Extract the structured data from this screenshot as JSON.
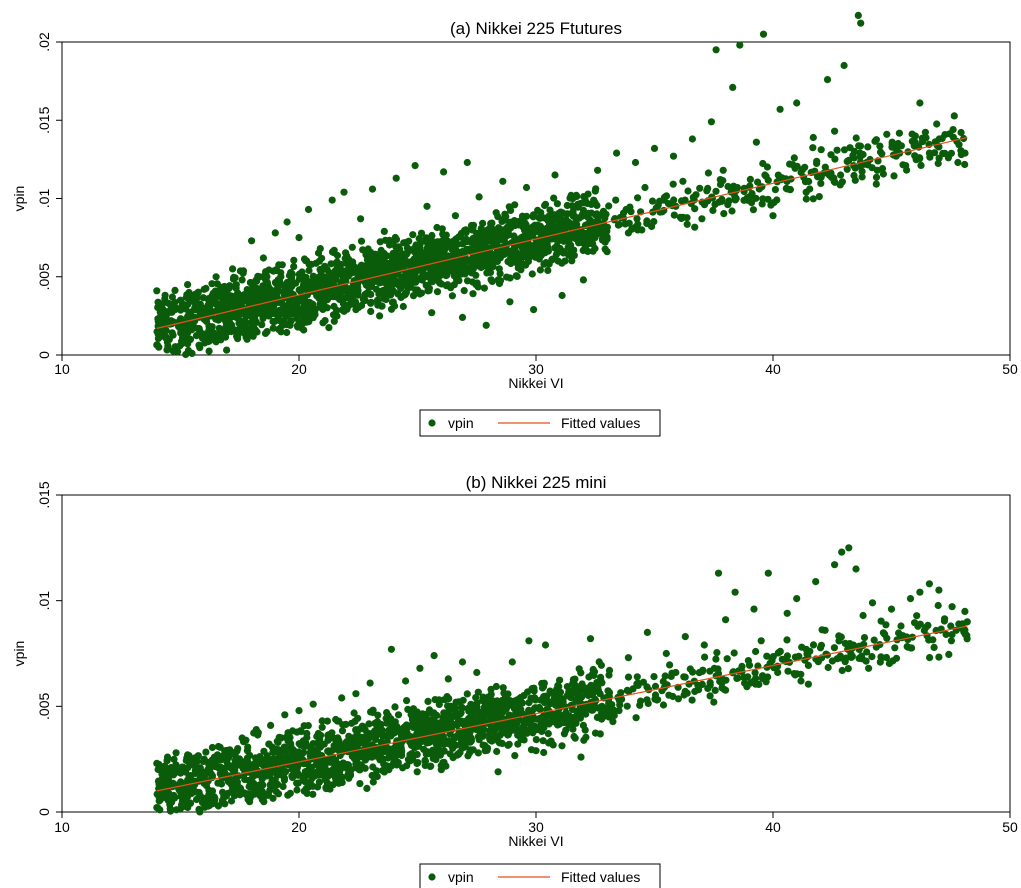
{
  "chart_data": [
    {
      "type": "scatter",
      "title": "(a) Nikkei 225 Ftutures",
      "xlabel": "Nikkei VI",
      "ylabel": "vpin",
      "xlim": [
        10,
        50
      ],
      "ylim": [
        0,
        0.02
      ],
      "xticks": [
        10,
        20,
        30,
        40,
        50
      ],
      "xtick_labels": [
        "10",
        "20",
        "30",
        "40",
        "50"
      ],
      "yticks": [
        0,
        0.005,
        0.01,
        0.015,
        0.02
      ],
      "ytick_labels": [
        "0",
        ".005",
        ".01",
        ".015",
        ".02"
      ],
      "grid": false,
      "legend_position": "bottom-center",
      "legend": [
        "vpin",
        "Fitted values"
      ],
      "series": [
        {
          "name": "vpin",
          "kind": "scatter",
          "color": "#0a5c0a",
          "points": [
            [
              14,
              0.0041
            ],
            [
              14.2,
              0.003
            ],
            [
              14.5,
              0.0033
            ],
            [
              15,
              0.0035
            ],
            [
              15.3,
              0.0045
            ],
            [
              15.6,
              0.003
            ],
            [
              16,
              0.0042
            ],
            [
              16.3,
              0.0025
            ],
            [
              16.5,
              0.005
            ],
            [
              16.8,
              0.0036
            ],
            [
              17,
              0.002
            ],
            [
              17.2,
              0.0055
            ],
            [
              17.4,
              0.0012
            ],
            [
              17.6,
              0.0048
            ],
            [
              17.8,
              0.0028
            ],
            [
              18,
              0.0073
            ],
            [
              18.2,
              0.0021
            ],
            [
              18.5,
              0.0062
            ],
            [
              18.7,
              0.0044
            ],
            [
              19,
              0.0078
            ],
            [
              19.2,
              0.0017
            ],
            [
              19.5,
              0.0085
            ],
            [
              19.7,
              0.0052
            ],
            [
              20,
              0.0075
            ],
            [
              20.2,
              0.0016
            ],
            [
              20.4,
              0.0093
            ],
            [
              20.6,
              0.0047
            ],
            [
              20.9,
              0.0068
            ],
            [
              21.1,
              0.0022
            ],
            [
              21.4,
              0.0099
            ],
            [
              21.6,
              0.0037
            ],
            [
              21.9,
              0.0104
            ],
            [
              22.1,
              0.0061
            ],
            [
              22.4,
              0.0029
            ],
            [
              22.6,
              0.0087
            ],
            [
              22.9,
              0.0053
            ],
            [
              23.1,
              0.0106
            ],
            [
              23.4,
              0.0025
            ],
            [
              23.6,
              0.0079
            ],
            [
              23.9,
              0.0046
            ],
            [
              24.1,
              0.0113
            ],
            [
              24.4,
              0.0031
            ],
            [
              24.6,
              0.0066
            ],
            [
              24.9,
              0.0121
            ],
            [
              25.1,
              0.0039
            ],
            [
              25.4,
              0.0095
            ],
            [
              25.6,
              0.0027
            ],
            [
              25.9,
              0.0071
            ],
            [
              26.1,
              0.0117
            ],
            [
              26.4,
              0.0043
            ],
            [
              26.6,
              0.0089
            ],
            [
              26.9,
              0.0024
            ],
            [
              27.1,
              0.0123
            ],
            [
              27.4,
              0.0058
            ],
            [
              27.6,
              0.0101
            ],
            [
              27.9,
              0.0019
            ],
            [
              28.1,
              0.0082
            ],
            [
              28.4,
              0.0048
            ],
            [
              28.6,
              0.0111
            ],
            [
              28.9,
              0.0034
            ],
            [
              29.1,
              0.0096
            ],
            [
              29.4,
              0.0062
            ],
            [
              29.6,
              0.0107
            ],
            [
              29.9,
              0.0029
            ],
            [
              30.2,
              0.0091
            ],
            [
              30.5,
              0.0054
            ],
            [
              30.8,
              0.0115
            ],
            [
              31.1,
              0.0038
            ],
            [
              31.4,
              0.0076
            ],
            [
              31.7,
              0.0102
            ],
            [
              32,
              0.0048
            ],
            [
              32.3,
              0.0086
            ],
            [
              32.6,
              0.0118
            ],
            [
              33,
              0.0066
            ],
            [
              33.4,
              0.0129
            ],
            [
              33.8,
              0.0093
            ],
            [
              34.2,
              0.0123
            ],
            [
              34.6,
              0.0107
            ],
            [
              35,
              0.0132
            ],
            [
              35.4,
              0.0099
            ],
            [
              35.8,
              0.0127
            ],
            [
              36.2,
              0.0111
            ],
            [
              36.6,
              0.0138
            ],
            [
              37,
              0.0087
            ],
            [
              37.4,
              0.0149
            ],
            [
              37.6,
              0.0195
            ],
            [
              37.9,
              0.0118
            ],
            [
              38.3,
              0.0171
            ],
            [
              38.6,
              0.0198
            ],
            [
              39,
              0.0101
            ],
            [
              39.3,
              0.0136
            ],
            [
              39.6,
              0.0205
            ],
            [
              40,
              0.0089
            ],
            [
              40.3,
              0.0157
            ],
            [
              40.7,
              0.0122
            ],
            [
              41,
              0.0161
            ],
            [
              41.4,
              0.0104
            ],
            [
              41.7,
              0.0139
            ],
            [
              42,
              0.0115
            ],
            [
              42.3,
              0.0176
            ],
            [
              42.6,
              0.0143
            ],
            [
              43,
              0.0185
            ],
            [
              43.4,
              0.0121
            ],
            [
              43.6,
              0.0217
            ],
            [
              43.7,
              0.0212
            ],
            [
              44,
              0.0133
            ],
            [
              44.4,
              0.0118
            ],
            [
              44.8,
              0.0141
            ],
            [
              45.2,
              0.0127
            ],
            [
              45.6,
              0.0121
            ],
            [
              46,
              0.0136
            ],
            [
              46.2,
              0.0161
            ],
            [
              46.6,
              0.0129
            ],
            [
              47,
              0.0133
            ],
            [
              47.4,
              0.0126
            ],
            [
              47.8,
              0.0123
            ],
            [
              48.1,
              0.0129
            ]
          ]
        },
        {
          "name": "Fitted values",
          "kind": "line",
          "color": "#e8501a",
          "points": [
            [
              14,
              0.0017
            ],
            [
              48.2,
              0.0139
            ]
          ]
        }
      ]
    },
    {
      "type": "scatter",
      "title": "(b) Nikkei 225 mini",
      "xlabel": "Nikkei VI",
      "ylabel": "vpin",
      "xlim": [
        10,
        50
      ],
      "ylim": [
        0,
        0.015
      ],
      "xticks": [
        10,
        20,
        30,
        40,
        50
      ],
      "xtick_labels": [
        "10",
        "20",
        "30",
        "40",
        "50"
      ],
      "yticks": [
        0,
        0.005,
        0.01,
        0.015
      ],
      "ytick_labels": [
        "0",
        ".005",
        ".01",
        ".015"
      ],
      "grid": false,
      "legend_position": "bottom-center",
      "legend": [
        "vpin",
        "Fitted values"
      ],
      "series": [
        {
          "name": "vpin",
          "kind": "scatter",
          "color": "#0a5c0a",
          "points": [
            [
              14,
              0.0023
            ],
            [
              14.3,
              0.0016
            ],
            [
              14.6,
              0.0021
            ],
            [
              15,
              0.0019
            ],
            [
              15.3,
              0.0027
            ],
            [
              15.6,
              0.0014
            ],
            [
              16,
              0.0025
            ],
            [
              16.3,
              0.0018
            ],
            [
              16.6,
              0.0031
            ],
            [
              17,
              0.0015
            ],
            [
              17.3,
              0.0027
            ],
            [
              17.6,
              0.0035
            ],
            [
              17.9,
              0.0012
            ],
            [
              18.2,
              0.0039
            ],
            [
              18.5,
              0.0022
            ],
            [
              18.8,
              0.0041
            ],
            [
              19.1,
              0.0013
            ],
            [
              19.4,
              0.0046
            ],
            [
              19.7,
              0.0029
            ],
            [
              20,
              0.0048
            ],
            [
              20.3,
              0.0011
            ],
            [
              20.6,
              0.0051
            ],
            [
              20.9,
              0.0024
            ],
            [
              21.2,
              0.0043
            ],
            [
              21.5,
              0.0017
            ],
            [
              21.8,
              0.0054
            ],
            [
              22.1,
              0.0033
            ],
            [
              22.4,
              0.0056
            ],
            [
              22.7,
              0.0021
            ],
            [
              23,
              0.0061
            ],
            [
              23.3,
              0.0038
            ],
            [
              23.6,
              0.0019
            ],
            [
              23.9,
              0.0077
            ],
            [
              24.2,
              0.0046
            ],
            [
              24.5,
              0.0062
            ],
            [
              24.8,
              0.0025
            ],
            [
              25.1,
              0.0068
            ],
            [
              25.4,
              0.0041
            ],
            [
              25.7,
              0.0074
            ],
            [
              26,
              0.0022
            ],
            [
              26.3,
              0.0063
            ],
            [
              26.6,
              0.0049
            ],
            [
              26.9,
              0.0071
            ],
            [
              27.2,
              0.0028
            ],
            [
              27.5,
              0.0066
            ],
            [
              27.8,
              0.0039
            ],
            [
              28.1,
              0.0058
            ],
            [
              28.4,
              0.0019
            ],
            [
              28.7,
              0.0054
            ],
            [
              29,
              0.0071
            ],
            [
              29.3,
              0.0036
            ],
            [
              29.7,
              0.0081
            ],
            [
              30,
              0.0029
            ],
            [
              30.4,
              0.0079
            ],
            [
              30.8,
              0.0052
            ],
            [
              31.2,
              0.0037
            ],
            [
              31.6,
              0.0058
            ],
            [
              31.9,
              0.0026
            ],
            [
              32.3,
              0.0082
            ],
            [
              32.7,
              0.0056
            ],
            [
              33.1,
              0.0067
            ],
            [
              33.5,
              0.0048
            ],
            [
              33.9,
              0.0073
            ],
            [
              34.3,
              0.0061
            ],
            [
              34.7,
              0.0085
            ],
            [
              35.1,
              0.0053
            ],
            [
              35.5,
              0.0075
            ],
            [
              35.9,
              0.0066
            ],
            [
              36.3,
              0.0083
            ],
            [
              36.7,
              0.0057
            ],
            [
              37.1,
              0.0079
            ],
            [
              37.5,
              0.0052
            ],
            [
              37.7,
              0.0113
            ],
            [
              38,
              0.0091
            ],
            [
              38.4,
              0.0104
            ],
            [
              38.8,
              0.0061
            ],
            [
              39.2,
              0.0096
            ],
            [
              39.5,
              0.0081
            ],
            [
              39.8,
              0.0113
            ],
            [
              40.2,
              0.0066
            ],
            [
              40.6,
              0.0094
            ],
            [
              41,
              0.0101
            ],
            [
              41.4,
              0.0077
            ],
            [
              41.8,
              0.0109
            ],
            [
              42.2,
              0.0086
            ],
            [
              42.6,
              0.0117
            ],
            [
              42.9,
              0.0123
            ],
            [
              43.2,
              0.0125
            ],
            [
              43.5,
              0.0115
            ],
            [
              43.8,
              0.0093
            ],
            [
              44.2,
              0.0099
            ],
            [
              44.6,
              0.0073
            ],
            [
              45,
              0.0096
            ],
            [
              45.4,
              0.0088
            ],
            [
              45.8,
              0.0101
            ],
            [
              46.2,
              0.0104
            ],
            [
              46.6,
              0.0108
            ],
            [
              47,
              0.0105
            ],
            [
              47.5,
              0.0088
            ],
            [
              48,
              0.0089
            ],
            [
              48.2,
              0.009
            ]
          ]
        },
        {
          "name": "Fitted values",
          "kind": "line",
          "color": "#e8501a",
          "points": [
            [
              14,
              0.001
            ],
            [
              48.2,
              0.0088
            ]
          ]
        }
      ]
    }
  ]
}
